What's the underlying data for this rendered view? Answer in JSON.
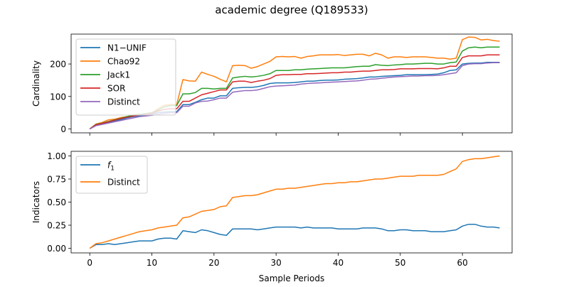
{
  "chart_data": [
    {
      "type": "line",
      "title": "academic degree (Q189533)",
      "xlabel": "",
      "ylabel": "Cardinality",
      "xlim": [
        -3,
        68
      ],
      "ylim": [
        -12,
        292
      ],
      "x_ticks": [
        0,
        10,
        20,
        30,
        40,
        50,
        60
      ],
      "y_ticks": [
        0,
        100,
        200
      ],
      "y_tick_labels": [
        "0",
        "100",
        "200"
      ],
      "legend_position": "upper-left",
      "grid": false,
      "series": [
        {
          "name": "N1−UNIF",
          "color": "#1f77b4",
          "values": [
            0,
            12,
            17,
            20,
            25,
            29,
            34,
            38,
            41,
            42,
            45,
            50,
            52,
            53,
            53,
            75,
            75,
            82,
            90,
            95,
            95,
            102,
            102,
            125,
            127,
            128,
            128,
            130,
            134,
            140,
            142,
            142,
            142,
            143,
            145,
            147,
            147,
            149,
            150,
            150,
            151,
            153,
            154,
            155,
            157,
            160,
            160,
            162,
            163,
            164,
            165,
            167,
            167,
            167,
            167,
            168,
            169,
            173,
            180,
            182,
            200,
            202,
            203,
            203,
            205,
            205,
            205
          ]
        },
        {
          "name": "Chao92",
          "color": "#ff7f0e",
          "values": [
            0,
            15,
            20,
            28,
            30,
            35,
            38,
            43,
            45,
            47,
            50,
            62,
            73,
            75,
            75,
            152,
            148,
            147,
            175,
            168,
            162,
            153,
            145,
            195,
            196,
            195,
            187,
            192,
            200,
            208,
            222,
            223,
            222,
            223,
            218,
            223,
            225,
            228,
            228,
            228,
            229,
            226,
            228,
            230,
            230,
            225,
            233,
            228,
            218,
            222,
            222,
            220,
            222,
            222,
            222,
            220,
            218,
            218,
            215,
            218,
            275,
            283,
            282,
            274,
            276,
            272,
            270
          ]
        },
        {
          "name": "Jack1",
          "color": "#2ca02c",
          "values": [
            0,
            14,
            18,
            23,
            28,
            33,
            38,
            42,
            45,
            47,
            50,
            58,
            68,
            72,
            72,
            108,
            108,
            112,
            125,
            125,
            123,
            125,
            125,
            157,
            160,
            162,
            160,
            162,
            165,
            170,
            180,
            180,
            180,
            182,
            182,
            184,
            185,
            186,
            187,
            188,
            188,
            188,
            190,
            192,
            193,
            193,
            198,
            196,
            195,
            197,
            198,
            200,
            200,
            201,
            202,
            202,
            200,
            200,
            204,
            206,
            240,
            250,
            252,
            250,
            252,
            252,
            252
          ]
        },
        {
          "name": "SOR",
          "color": "#d62728",
          "values": [
            0,
            13,
            17,
            22,
            27,
            32,
            36,
            40,
            43,
            45,
            48,
            55,
            60,
            62,
            62,
            85,
            85,
            95,
            105,
            110,
            115,
            120,
            120,
            145,
            147,
            147,
            143,
            147,
            150,
            155,
            165,
            167,
            167,
            168,
            168,
            170,
            170,
            171,
            172,
            173,
            173,
            175,
            175,
            177,
            178,
            178,
            180,
            182,
            182,
            183,
            185,
            185,
            185,
            186,
            186,
            186,
            185,
            188,
            193,
            193,
            220,
            225,
            225,
            225,
            228,
            228,
            228
          ]
        },
        {
          "name": "Distinct",
          "color": "#9467bd",
          "values": [
            0,
            10,
            14,
            18,
            22,
            26,
            30,
            34,
            38,
            40,
            42,
            45,
            48,
            50,
            50,
            70,
            70,
            80,
            85,
            86,
            90,
            95,
            95,
            113,
            116,
            118,
            118,
            120,
            125,
            130,
            132,
            133,
            134,
            135,
            138,
            140,
            141,
            142,
            143,
            144,
            145,
            146,
            147,
            148,
            150,
            153,
            154,
            156,
            158,
            160,
            161,
            162,
            163,
            163,
            164,
            164,
            165,
            167,
            170,
            173,
            195,
            200,
            201,
            201,
            203,
            204,
            204
          ]
        }
      ]
    },
    {
      "type": "line",
      "title": "",
      "xlabel": "Sample Periods",
      "ylabel": "Indicators",
      "xlim": [
        -3,
        68
      ],
      "ylim": [
        -0.05,
        1.05
      ],
      "x_ticks": [
        0,
        10,
        20,
        30,
        40,
        50,
        60
      ],
      "y_ticks": [
        0,
        0.25,
        0.5,
        0.75,
        1.0
      ],
      "y_tick_labels": [
        "0.00",
        "0.25",
        "0.50",
        "0.75",
        "1.00"
      ],
      "legend_position": "upper-left",
      "grid": false,
      "series": [
        {
          "name": "f1",
          "color": "#1f77b4",
          "values": [
            0,
            0.04,
            0.04,
            0.05,
            0.04,
            0.05,
            0.06,
            0.07,
            0.08,
            0.08,
            0.08,
            0.1,
            0.11,
            0.11,
            0.1,
            0.19,
            0.18,
            0.17,
            0.2,
            0.19,
            0.17,
            0.15,
            0.14,
            0.21,
            0.21,
            0.21,
            0.21,
            0.2,
            0.21,
            0.22,
            0.23,
            0.23,
            0.23,
            0.23,
            0.22,
            0.23,
            0.22,
            0.22,
            0.22,
            0.22,
            0.21,
            0.21,
            0.21,
            0.21,
            0.22,
            0.22,
            0.22,
            0.21,
            0.19,
            0.19,
            0.2,
            0.2,
            0.19,
            0.19,
            0.19,
            0.18,
            0.18,
            0.18,
            0.19,
            0.2,
            0.24,
            0.26,
            0.26,
            0.24,
            0.23,
            0.23,
            0.22
          ]
        },
        {
          "name": "Distinct",
          "color": "#ff7f0e",
          "values": [
            0,
            0.05,
            0.06,
            0.08,
            0.1,
            0.12,
            0.14,
            0.16,
            0.18,
            0.19,
            0.2,
            0.22,
            0.23,
            0.24,
            0.25,
            0.33,
            0.34,
            0.37,
            0.4,
            0.41,
            0.42,
            0.45,
            0.46,
            0.55,
            0.56,
            0.57,
            0.57,
            0.58,
            0.6,
            0.62,
            0.64,
            0.64,
            0.65,
            0.65,
            0.66,
            0.67,
            0.68,
            0.69,
            0.7,
            0.7,
            0.71,
            0.71,
            0.72,
            0.72,
            0.73,
            0.74,
            0.75,
            0.75,
            0.76,
            0.77,
            0.78,
            0.78,
            0.78,
            0.79,
            0.79,
            0.79,
            0.79,
            0.8,
            0.83,
            0.86,
            0.94,
            0.96,
            0.97,
            0.97,
            0.98,
            0.99,
            1.0
          ]
        }
      ]
    }
  ]
}
